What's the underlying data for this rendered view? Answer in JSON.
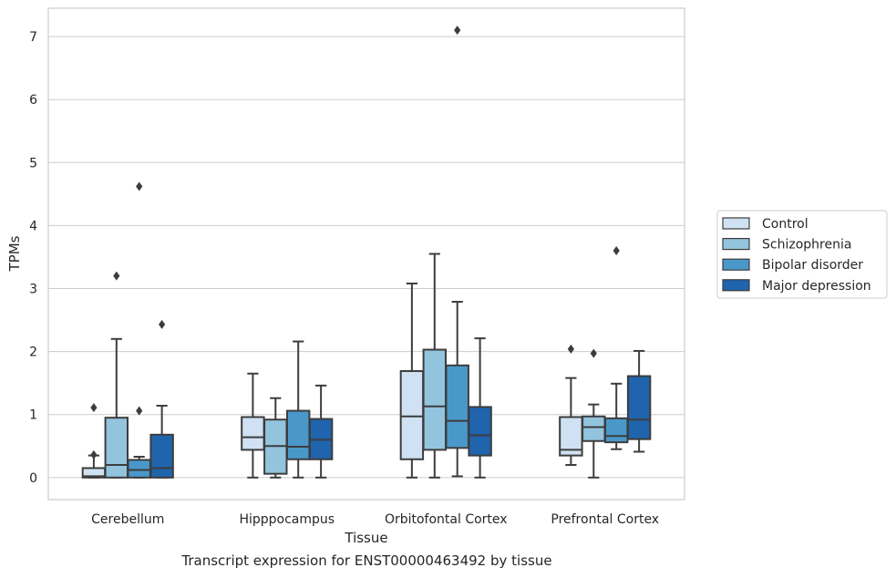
{
  "chart_data": {
    "type": "box",
    "xlabel": "Tissue",
    "ylabel": "TPMs",
    "caption": "Transcript expression for ENST00000463492 by tissue",
    "categories": [
      "Cerebellum",
      "Hipppocampus",
      "Orbitofontal Cortex",
      "Prefrontal Cortex"
    ],
    "ylim": [
      -0.35,
      7.45
    ],
    "yticks": [
      0,
      1,
      2,
      3,
      4,
      5,
      6,
      7
    ],
    "grid": "horizontal",
    "legend_position": "right",
    "series": [
      {
        "name": "Control",
        "color": "#cfe1f2",
        "boxes": [
          {
            "whislo": 0.0,
            "q1": 0.0,
            "med": 0.02,
            "q3": 0.15,
            "whishi": 0.35,
            "fliers": [
              0.36,
              1.11
            ]
          },
          {
            "whislo": 0.0,
            "q1": 0.44,
            "med": 0.64,
            "q3": 0.96,
            "whishi": 1.65,
            "fliers": []
          },
          {
            "whislo": 0.0,
            "q1": 0.29,
            "med": 0.97,
            "q3": 1.69,
            "whishi": 3.08,
            "fliers": []
          },
          {
            "whislo": 0.2,
            "q1": 0.35,
            "med": 0.44,
            "q3": 0.96,
            "whishi": 1.58,
            "fliers": [
              2.04
            ]
          }
        ]
      },
      {
        "name": "Schizophrenia",
        "color": "#93c4de",
        "boxes": [
          {
            "whislo": 0.0,
            "q1": 0.0,
            "med": 0.2,
            "q3": 0.95,
            "whishi": 2.2,
            "fliers": [
              3.2
            ]
          },
          {
            "whislo": 0.0,
            "q1": 0.06,
            "med": 0.5,
            "q3": 0.92,
            "whishi": 1.26,
            "fliers": []
          },
          {
            "whislo": 0.0,
            "q1": 0.44,
            "med": 1.13,
            "q3": 2.03,
            "whishi": 3.55,
            "fliers": []
          },
          {
            "whislo": 0.0,
            "q1": 0.58,
            "med": 0.8,
            "q3": 0.97,
            "whishi": 1.16,
            "fliers": [
              1.97
            ]
          }
        ]
      },
      {
        "name": "Bipolar disorder",
        "color": "#4a98c9",
        "boxes": [
          {
            "whislo": 0.0,
            "q1": 0.0,
            "med": 0.12,
            "q3": 0.28,
            "whishi": 0.33,
            "fliers": [
              1.06,
              4.62
            ]
          },
          {
            "whislo": 0.0,
            "q1": 0.29,
            "med": 0.49,
            "q3": 1.06,
            "whishi": 2.16,
            "fliers": []
          },
          {
            "whislo": 0.02,
            "q1": 0.47,
            "med": 0.9,
            "q3": 1.78,
            "whishi": 2.79,
            "fliers": [
              7.1
            ]
          },
          {
            "whislo": 0.45,
            "q1": 0.56,
            "med": 0.66,
            "q3": 0.94,
            "whishi": 1.49,
            "fliers": [
              3.6
            ]
          }
        ]
      },
      {
        "name": "Major depression",
        "color": "#1f64ad",
        "boxes": [
          {
            "whislo": 0.0,
            "q1": 0.0,
            "med": 0.15,
            "q3": 0.68,
            "whishi": 1.14,
            "fliers": [
              2.43
            ]
          },
          {
            "whislo": 0.0,
            "q1": 0.29,
            "med": 0.6,
            "q3": 0.93,
            "whishi": 1.46,
            "fliers": []
          },
          {
            "whislo": 0.0,
            "q1": 0.35,
            "med": 0.67,
            "q3": 1.12,
            "whishi": 2.21,
            "fliers": []
          },
          {
            "whislo": 0.41,
            "q1": 0.61,
            "med": 0.92,
            "q3": 1.61,
            "whishi": 2.01,
            "fliers": []
          }
        ]
      }
    ]
  }
}
